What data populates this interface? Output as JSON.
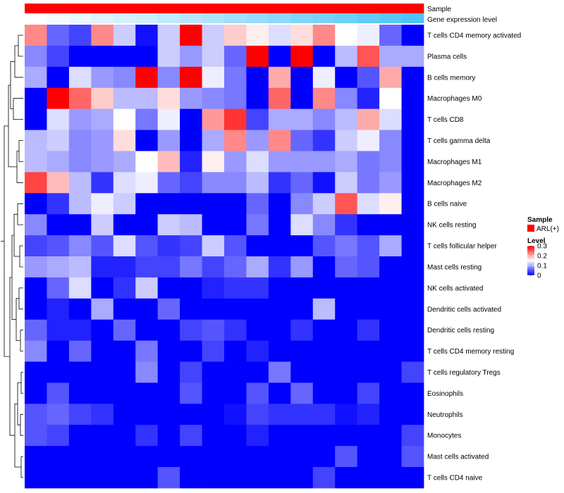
{
  "chart_data": {
    "type": "heatmap",
    "title": "",
    "annotations": [
      {
        "name": "Sample",
        "legend_label": "ARL(+)",
        "color": "#ff0000"
      },
      {
        "name": "Gene expression level",
        "color_low": "#ffffff",
        "color_high": "#4fc3f7"
      }
    ],
    "row_labels": [
      "T cells CD4 memory activated",
      "Plasma cells",
      "B cells memory",
      "Macrophages M0",
      "T cells CD8",
      "T cells gamma delta",
      "Macrophages M1",
      "Macrophages M2",
      "B cells naive",
      "NK cells resting",
      "T cells follicular helper",
      "Mast cells resting",
      "NK cells activated",
      "Dendritic cells activated",
      "Dendritic cells resting",
      "T cells CD4 memory resting",
      "T cells regulatory  Tregs",
      "Eosinophils",
      "Neutrophils",
      "Monocytes",
      "Mast cells activated",
      "T cells CD4 naive"
    ],
    "n_columns": 18,
    "values": [
      [
        0.22,
        0.06,
        0.04,
        0.22,
        0.12,
        0.01,
        0.12,
        0.3,
        0.12,
        0.18,
        0.16,
        0.13,
        0.17,
        0.22,
        0.15,
        0.14,
        0.06,
        0.0
      ],
      [
        0.08,
        0.04,
        0.0,
        0.0,
        0.0,
        0.0,
        0.12,
        0.09,
        0.12,
        0.06,
        0.3,
        0.0,
        0.3,
        0.0,
        0.11,
        0.25,
        0.1,
        0.1
      ],
      [
        0.1,
        0.0,
        0.13,
        0.09,
        0.08,
        0.3,
        0.08,
        0.3,
        0.14,
        0.07,
        0.0,
        0.2,
        0.0,
        0.14,
        0.0,
        0.05,
        0.2,
        0.0
      ],
      [
        0.0,
        0.3,
        0.24,
        0.18,
        0.11,
        0.11,
        0.17,
        0.09,
        0.08,
        0.07,
        0.0,
        0.24,
        0.0,
        0.22,
        0.08,
        0.02,
        0.15,
        0.0
      ],
      [
        0.0,
        0.13,
        0.09,
        0.1,
        0.15,
        0.07,
        0.14,
        0.0,
        0.21,
        0.27,
        0.04,
        0.1,
        0.1,
        0.08,
        0.11,
        0.2,
        0.13,
        0.0
      ],
      [
        0.11,
        0.12,
        0.08,
        0.09,
        0.17,
        0.0,
        0.09,
        0.0,
        0.1,
        0.22,
        0.09,
        0.22,
        0.06,
        0.03,
        0.12,
        0.14,
        0.08,
        0.0
      ],
      [
        0.11,
        0.1,
        0.08,
        0.09,
        0.1,
        0.15,
        0.19,
        0.02,
        0.16,
        0.09,
        0.13,
        0.09,
        0.09,
        0.09,
        0.1,
        0.07,
        0.08,
        0.0
      ],
      [
        0.26,
        0.19,
        0.11,
        0.03,
        0.13,
        0.14,
        0.06,
        0.04,
        0.08,
        0.08,
        0.11,
        0.03,
        0.06,
        0.01,
        0.12,
        0.07,
        0.09,
        0.0
      ],
      [
        0.0,
        0.03,
        0.11,
        0.14,
        0.12,
        0.0,
        0.0,
        0.0,
        0.0,
        0.0,
        0.06,
        0.0,
        0.08,
        0.12,
        0.25,
        0.13,
        0.16,
        0.0
      ],
      [
        0.08,
        0.0,
        0.0,
        0.12,
        0.0,
        0.0,
        0.12,
        0.11,
        0.0,
        0.0,
        0.07,
        0.0,
        0.13,
        0.08,
        0.03,
        0.0,
        0.0,
        0.0
      ],
      [
        0.04,
        0.05,
        0.08,
        0.05,
        0.13,
        0.05,
        0.03,
        0.04,
        0.12,
        0.05,
        0.0,
        0.0,
        0.0,
        0.05,
        0.07,
        0.05,
        0.1,
        0.0
      ],
      [
        0.09,
        0.1,
        0.11,
        0.02,
        0.02,
        0.04,
        0.04,
        0.07,
        0.04,
        0.06,
        0.1,
        0.03,
        0.09,
        0.0,
        0.06,
        0.05,
        0.0,
        0.0
      ],
      [
        0.0,
        0.06,
        0.13,
        0.0,
        0.03,
        0.12,
        0.0,
        0.0,
        0.02,
        0.03,
        0.03,
        0.0,
        0.0,
        0.0,
        0.0,
        0.0,
        0.0,
        0.0
      ],
      [
        0.0,
        0.02,
        0.0,
        0.1,
        0.0,
        0.0,
        0.06,
        0.0,
        0.0,
        0.0,
        0.0,
        0.0,
        0.0,
        0.11,
        0.0,
        0.0,
        0.0,
        0.0
      ],
      [
        0.06,
        0.02,
        0.02,
        0.0,
        0.06,
        0.0,
        0.0,
        0.04,
        0.05,
        0.03,
        0.0,
        0.0,
        0.03,
        0.0,
        0.0,
        0.03,
        0.0,
        0.0
      ],
      [
        0.08,
        0.0,
        0.06,
        0.0,
        0.0,
        0.07,
        0.0,
        0.0,
        0.04,
        0.0,
        0.02,
        0.0,
        0.0,
        0.0,
        0.0,
        0.0,
        0.0,
        0.0
      ],
      [
        0.0,
        0.0,
        0.0,
        0.0,
        0.0,
        0.08,
        0.0,
        0.04,
        0.0,
        0.0,
        0.0,
        0.07,
        0.0,
        0.0,
        0.0,
        0.0,
        0.0,
        0.04
      ],
      [
        0.0,
        0.05,
        0.0,
        0.0,
        0.0,
        0.0,
        0.0,
        0.05,
        0.0,
        0.0,
        0.05,
        0.0,
        0.06,
        0.0,
        0.0,
        0.04,
        0.0,
        0.0
      ],
      [
        0.05,
        0.06,
        0.04,
        0.03,
        0.0,
        0.0,
        0.0,
        0.0,
        0.0,
        0.01,
        0.04,
        0.03,
        0.03,
        0.03,
        0.01,
        0.02,
        0.0,
        0.0
      ],
      [
        0.05,
        0.04,
        0.0,
        0.0,
        0.0,
        0.03,
        0.0,
        0.04,
        0.0,
        0.0,
        0.02,
        0.0,
        0.0,
        0.0,
        0.0,
        0.0,
        0.0,
        0.04
      ],
      [
        0.0,
        0.0,
        0.0,
        0.0,
        0.0,
        0.0,
        0.0,
        0.0,
        0.0,
        0.0,
        0.0,
        0.0,
        0.0,
        0.0,
        0.05,
        0.0,
        0.0,
        0.05
      ],
      [
        0.0,
        0.0,
        0.0,
        0.0,
        0.0,
        0.0,
        0.05,
        0.0,
        0.0,
        0.0,
        0.0,
        0.0,
        0.0,
        0.04,
        0.0,
        0.0,
        0.0,
        0.0
      ]
    ],
    "gene_expression_level": [
      0.0,
      0.06,
      0.12,
      0.18,
      0.24,
      0.29,
      0.35,
      0.41,
      0.47,
      0.53,
      0.59,
      0.65,
      0.71,
      0.76,
      0.82,
      0.88,
      0.94,
      1.0
    ],
    "color_scale": {
      "low": "#0000ff",
      "mid": "#ffffff",
      "high": "#ff0000",
      "min": 0,
      "max": 0.3
    },
    "legend": {
      "sample_title": "Sample",
      "sample_entry": "ARL(+)",
      "level_title": "Level",
      "ticks": [
        {
          "value": 0.3,
          "label": "0.3"
        },
        {
          "value": 0.2,
          "label": "0.2"
        },
        {
          "value": 0.1,
          "label": "0.1"
        },
        {
          "value": 0,
          "label": "0"
        }
      ]
    }
  }
}
